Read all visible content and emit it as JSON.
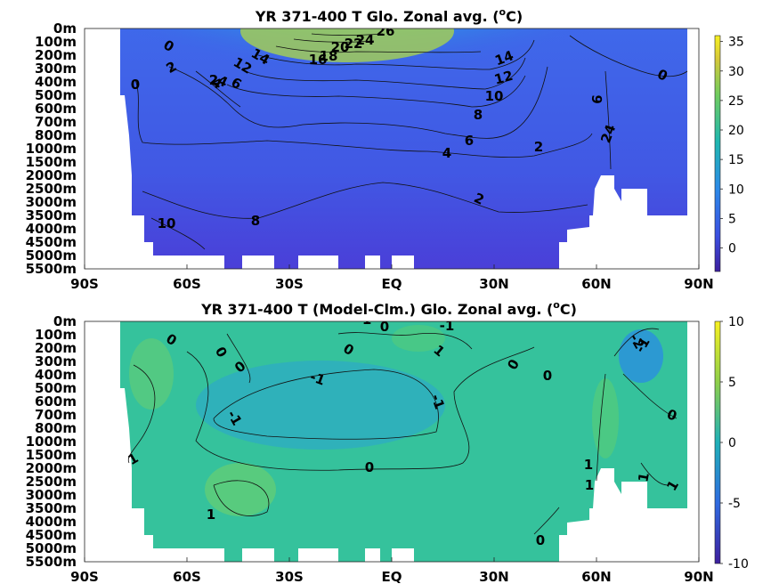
{
  "chart_data": [
    {
      "type": "heatmap",
      "title": "YR 371-400 T Glo. Zonal avg. (",
      "title_sup": "o",
      "title_end": "C)",
      "x_ticks": [
        "90S",
        "60S",
        "30S",
        "EQ",
        "30N",
        "60N",
        "90N"
      ],
      "y_ticks": [
        "0m",
        "100m",
        "200m",
        "300m",
        "400m",
        "500m",
        "600m",
        "700m",
        "800m",
        "1000m",
        "1500m",
        "2000m",
        "2500m",
        "3000m",
        "3500m",
        "4000m",
        "4500m",
        "5000m",
        "5500m"
      ],
      "colorbar_ticks": [
        "35",
        "30",
        "25",
        "20",
        "15",
        "10",
        "5",
        "0"
      ],
      "colorbar_range": [
        -4,
        36
      ],
      "contour_labels": [
        "0",
        "2",
        "4",
        "6",
        "8",
        "10",
        "12",
        "14",
        "16",
        "18",
        "20",
        "22",
        "24",
        "26",
        "0",
        "6",
        "4",
        "2",
        "24",
        "6",
        "8",
        "10",
        "12",
        "14",
        "4",
        "2",
        "0",
        "2"
      ]
    },
    {
      "type": "heatmap",
      "title": "YR 371-400 T (Model-Clm.) Glo. Zonal avg. (",
      "title_sup": "o",
      "title_end": "C)",
      "x_ticks": [
        "90S",
        "60S",
        "30S",
        "EQ",
        "30N",
        "60N",
        "90N"
      ],
      "y_ticks": [
        "0m",
        "100m",
        "200m",
        "300m",
        "400m",
        "500m",
        "600m",
        "700m",
        "800m",
        "1000m",
        "1500m",
        "2000m",
        "2500m",
        "3000m",
        "3500m",
        "4000m",
        "4500m",
        "5000m",
        "5500m"
      ],
      "colorbar_ticks": [
        "10",
        "5",
        "0",
        "-5",
        "-10"
      ],
      "colorbar_range": [
        -10,
        10
      ],
      "contour_labels": [
        "0",
        "0",
        "0",
        "-1",
        "-1",
        "0",
        "1",
        "-1",
        "0",
        "0",
        "-2",
        "-1",
        "0",
        "-1",
        "-1",
        "0",
        "1",
        "1",
        "1",
        "1",
        "1",
        "1",
        "0",
        "0"
      ]
    }
  ]
}
